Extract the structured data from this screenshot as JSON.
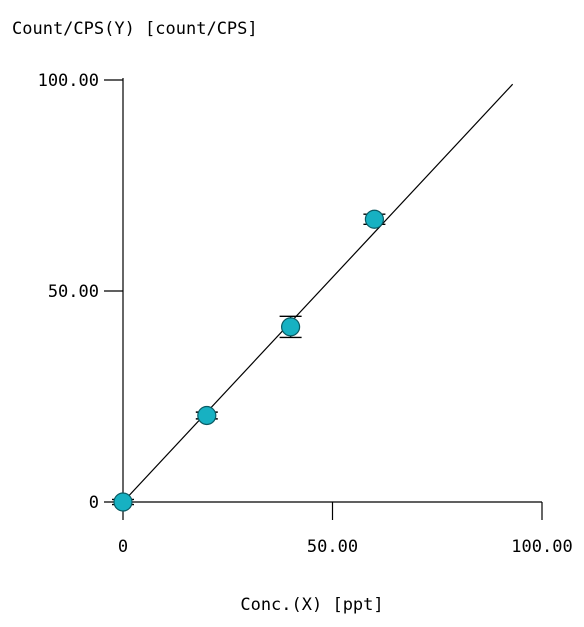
{
  "chart_data": {
    "type": "scatter",
    "ylabel": "Count/CPS(Y) [count/CPS]",
    "xlabel": "Conc.(X) [ppt]",
    "xlim": [
      0,
      100
    ],
    "ylim": [
      0,
      100
    ],
    "x_ticks": [
      {
        "value": 0,
        "label": "0"
      },
      {
        "value": 50,
        "label": "50.00"
      },
      {
        "value": 100,
        "label": "100.00"
      }
    ],
    "y_ticks": [
      {
        "value": 0,
        "label": "0"
      },
      {
        "value": 50,
        "label": "50.00"
      },
      {
        "value": 100,
        "label": "100.00"
      }
    ],
    "grid": false,
    "points": [
      {
        "x": 0,
        "y": 0,
        "err": 0.6
      },
      {
        "x": 20,
        "y": 20.5,
        "err": 0.8
      },
      {
        "x": 40,
        "y": 41.5,
        "err": 2.5
      },
      {
        "x": 60,
        "y": 67,
        "err": 1.2
      }
    ],
    "fit_line": {
      "x": [
        0,
        93
      ],
      "y": [
        0,
        99
      ]
    },
    "colors": {
      "marker": "#17b1c2",
      "marker_outline": "#0a5a63",
      "line": "#000000",
      "axis": "#000000"
    }
  }
}
